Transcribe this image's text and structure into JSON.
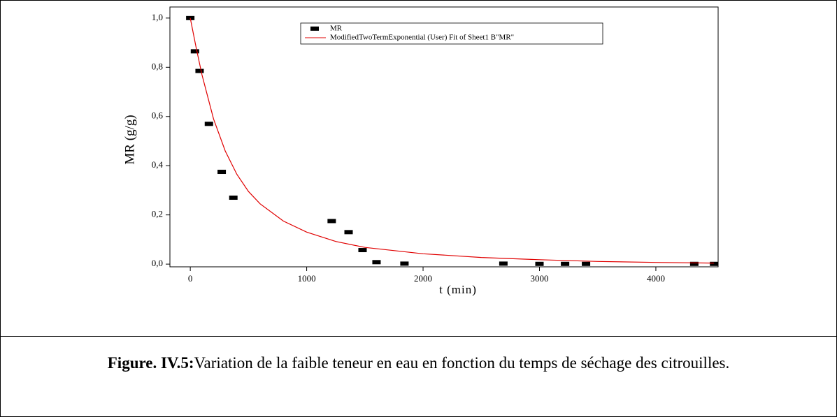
{
  "chart_data": {
    "type": "scatter",
    "xlabel": "t (min)",
    "ylabel": "MR (g/g)",
    "xlim": [
      -175,
      4535
    ],
    "ylim": [
      -0.011,
      1.045
    ],
    "xticks": [
      0,
      1000,
      2000,
      3000,
      4000
    ],
    "yticks": [
      {
        "value": 0,
        "label": "0,0"
      },
      {
        "value": 0.2,
        "label": "0,2"
      },
      {
        "value": 0.4,
        "label": "0,4"
      },
      {
        "value": 0.6,
        "label": "0,6"
      },
      {
        "value": 0.8,
        "label": "0,8"
      },
      {
        "value": 1.0,
        "label": "1,0"
      }
    ],
    "series": [
      {
        "name": "MR",
        "type": "scatter",
        "color": "#000000",
        "x": [
          0,
          40,
          80,
          160,
          270,
          370,
          1215,
          1360,
          1480,
          1600,
          1840,
          2690,
          3000,
          3220,
          3400,
          4330,
          4500
        ],
        "values": [
          1.0,
          0.865,
          0.785,
          0.57,
          0.375,
          0.27,
          0.175,
          0.13,
          0.057,
          0.008,
          0.002,
          0.002,
          0.001,
          0.001,
          0.001,
          0.001,
          0.001
        ]
      },
      {
        "name": "ModifiedTwoTermExponential (User) Fit of Sheet1 B\"MR\"",
        "type": "line",
        "color": "#e00000",
        "x": [
          0,
          50,
          100,
          200,
          300,
          400,
          500,
          600,
          800,
          1000,
          1250,
          1500,
          2000,
          2500,
          3000,
          3500,
          4000,
          4500
        ],
        "values": [
          1.0,
          0.88,
          0.77,
          0.59,
          0.46,
          0.365,
          0.295,
          0.245,
          0.175,
          0.13,
          0.092,
          0.068,
          0.042,
          0.027,
          0.018,
          0.011,
          0.007,
          0.004
        ]
      }
    ]
  },
  "caption": {
    "label": "Figure. IV.5:",
    "text": "Variation de la faible teneur en eau en fonction du temps de séchage des citrouilles."
  }
}
